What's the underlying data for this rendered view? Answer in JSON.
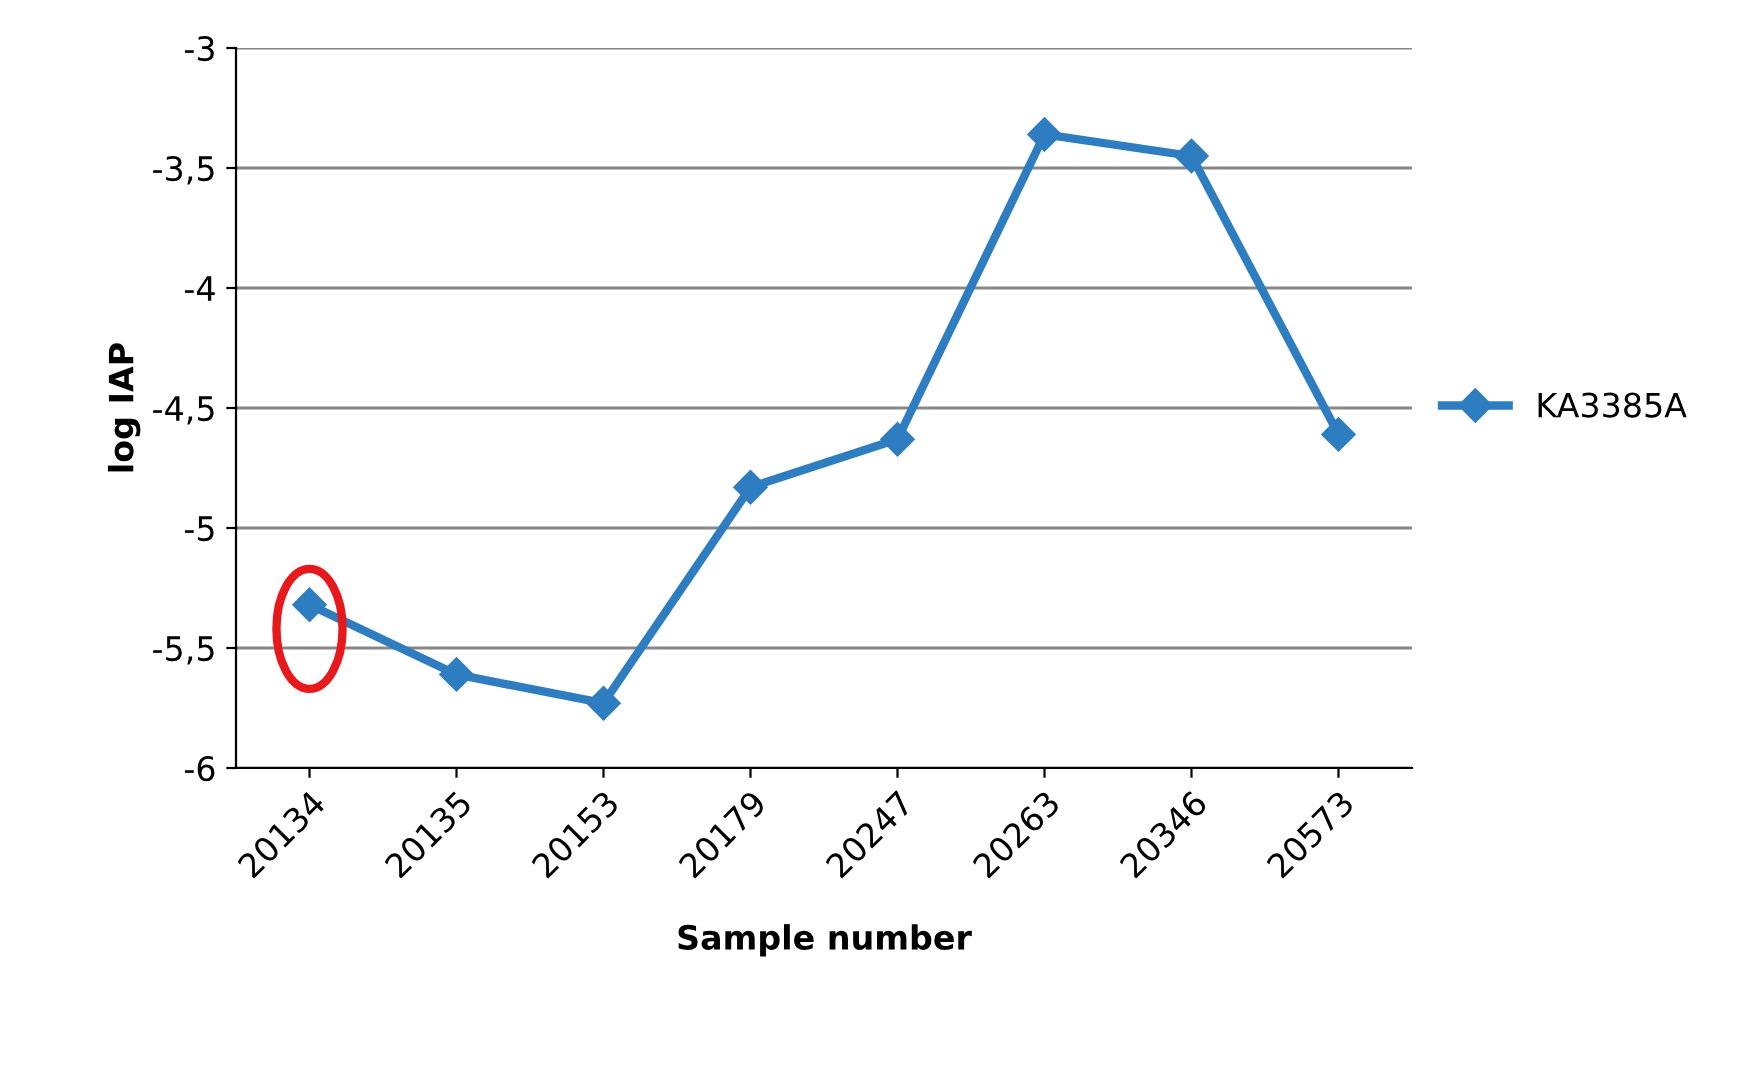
{
  "chart_data": {
    "type": "line",
    "xlabel": "Sample number",
    "ylabel": "log IAP",
    "categories": [
      "20134",
      "20135",
      "20153",
      "20179",
      "20247",
      "20263",
      "20346",
      "20573"
    ],
    "series": [
      {
        "name": "KA3385A",
        "color": "#2e7dc0",
        "values": [
          -5.32,
          -5.61,
          -5.73,
          -4.83,
          -4.63,
          -3.36,
          -3.45,
          -4.61
        ]
      }
    ],
    "ylim": [
      -6,
      -3
    ],
    "yticks": [
      -6,
      {
        "value": -5.5,
        "label": "-5,5"
      },
      -5,
      {
        "value": -4.5,
        "label": "-4,5"
      },
      -4,
      {
        "value": -3.5,
        "label": "-3,5"
      },
      -3
    ],
    "grid": "y",
    "legend": "right",
    "marker": "diamond",
    "line_style": "solid"
  }
}
